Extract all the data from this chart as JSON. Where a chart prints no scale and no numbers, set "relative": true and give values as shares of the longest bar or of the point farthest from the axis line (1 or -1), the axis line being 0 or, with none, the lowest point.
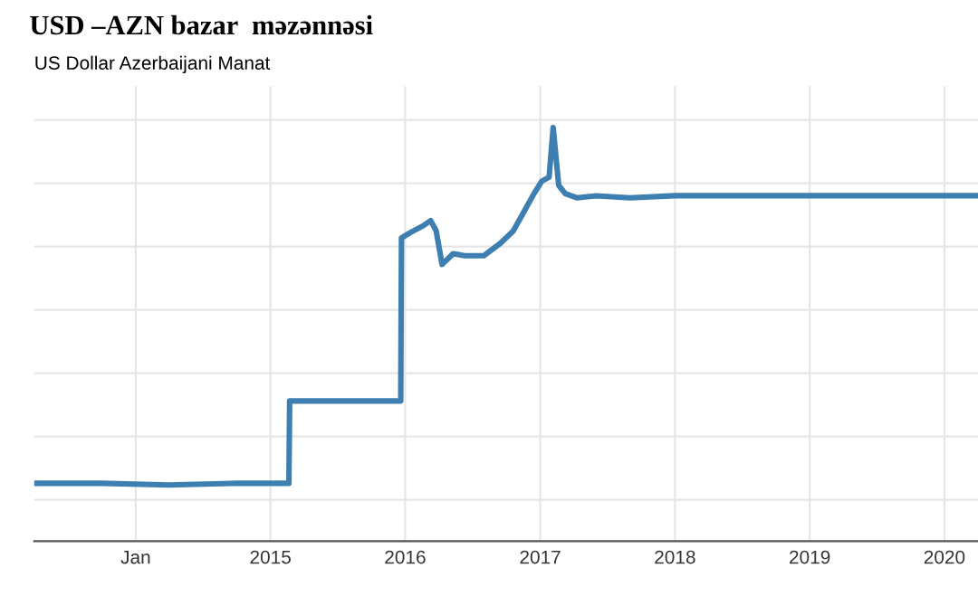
{
  "chart_data": {
    "type": "line",
    "title": "USD –AZN bazar  məzənnəsi",
    "subtitle": "US Dollar Azerbaijani Manat",
    "relative": true,
    "x": [
      "2013-04-01",
      "2013-10-01",
      "2014-04-01",
      "2014-10-01",
      "2015-02-20",
      "2015-02-22",
      "2015-08-01",
      "2015-12-20",
      "2015-12-22",
      "2016-01-15",
      "2016-02-20",
      "2016-03-10",
      "2016-03-25",
      "2016-04-10",
      "2016-05-10",
      "2016-06-10",
      "2016-08-01",
      "2016-09-15",
      "2016-10-20",
      "2016-11-20",
      "2016-12-15",
      "2017-01-05",
      "2017-01-25",
      "2017-02-05",
      "2017-02-20",
      "2017-03-10",
      "2017-04-10",
      "2017-06-01",
      "2017-09-01",
      "2018-01-01",
      "2018-07-01",
      "2019-01-01",
      "2019-07-01",
      "2020-01-01",
      "2020-04-01"
    ],
    "series": [
      {
        "color": "#3d7fb0",
        "values": [
          0.14,
          0.14,
          0.136,
          0.14,
          0.14,
          0.339,
          0.339,
          0.339,
          0.733,
          0.746,
          0.763,
          0.775,
          0.75,
          0.669,
          0.695,
          0.69,
          0.69,
          0.72,
          0.75,
          0.8,
          0.84,
          0.87,
          0.88,
          1.0,
          0.86,
          0.84,
          0.83,
          0.835,
          0.83,
          0.835,
          0.835,
          0.835,
          0.835,
          0.835,
          0.835
        ]
      }
    ],
    "xlim": [
      "2013-04-01",
      "2020-04-01"
    ],
    "xticks": [
      {
        "value": "2014-01-01",
        "label": "Jan"
      },
      {
        "value": "2015-01-01",
        "label": "2015"
      },
      {
        "value": "2016-01-01",
        "label": "2016"
      },
      {
        "value": "2017-01-01",
        "label": "2017"
      },
      {
        "value": "2018-01-01",
        "label": "2018"
      },
      {
        "value": "2019-01-01",
        "label": "2019"
      },
      {
        "value": "2020-01-01",
        "label": "2020"
      }
    ],
    "grid": true,
    "tick_labels": "x"
  }
}
